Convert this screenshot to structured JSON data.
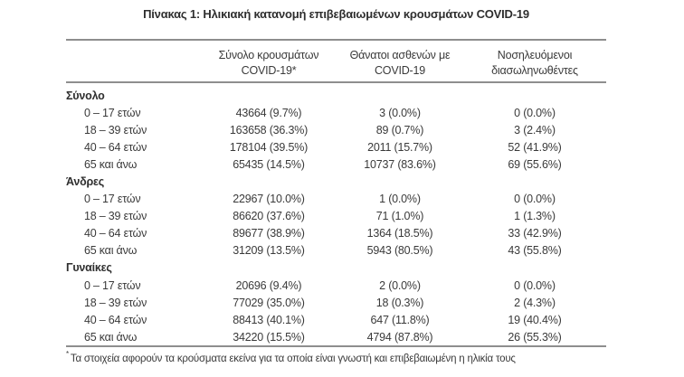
{
  "title": "Πίνακας 1: Ηλικιακή κατανομή επιβεβαιωμένων κρουσμάτων COVID-19",
  "colors": {
    "text": "#3a3a3a",
    "bold_text": "#2e2e2e",
    "border": "#8e8e8e",
    "background": "#ffffff"
  },
  "table": {
    "columns": [
      {
        "line1": "Σύνολο κρουσμάτων",
        "line2": "COVID-19*"
      },
      {
        "line1": "Θάνατοι ασθενών με",
        "line2": "COVID-19"
      },
      {
        "line1": "Νοσηλευόμενοι",
        "line2": "διασωληνωθέντες"
      }
    ],
    "sections": [
      {
        "label": "Σύνολο",
        "rows": [
          {
            "label": "0 – 17 ετών",
            "cases": "43664 (9.7%)",
            "deaths": "3 (0.0%)",
            "intubated": "0 (0.0%)"
          },
          {
            "label": "18 – 39 ετών",
            "cases": "163658 (36.3%)",
            "deaths": "89 (0.7%)",
            "intubated": "3 (2.4%)"
          },
          {
            "label": "40 – 64 ετών",
            "cases": "178104 (39.5%)",
            "deaths": "2011 (15.7%)",
            "intubated": "52 (41.9%)"
          },
          {
            "label": "65 και άνω",
            "cases": "65435 (14.5%)",
            "deaths": "10737 (83.6%)",
            "intubated": "69 (55.6%)"
          }
        ]
      },
      {
        "label": "Άνδρες",
        "rows": [
          {
            "label": "0 – 17 ετών",
            "cases": "22967 (10.0%)",
            "deaths": "1 (0.0%)",
            "intubated": "0 (0.0%)"
          },
          {
            "label": "18 – 39 ετών",
            "cases": "86620 (37.6%)",
            "deaths": "71 (1.0%)",
            "intubated": "1 (1.3%)"
          },
          {
            "label": "40 – 64 ετών",
            "cases": "89677 (38.9%)",
            "deaths": "1364 (18.5%)",
            "intubated": "33 (42.9%)"
          },
          {
            "label": "65 και άνω",
            "cases": "31209 (13.5%)",
            "deaths": "5943 (80.5%)",
            "intubated": "43 (55.8%)"
          }
        ]
      },
      {
        "label": "Γυναίκες",
        "rows": [
          {
            "label": "0 – 17 ετών",
            "cases": "20696 (9.4%)",
            "deaths": "2 (0.0%)",
            "intubated": "0 (0.0%)"
          },
          {
            "label": "18 – 39 ετών",
            "cases": "77029 (35.0%)",
            "deaths": "18 (0.3%)",
            "intubated": "2 (4.3%)"
          },
          {
            "label": "40 – 64 ετών",
            "cases": "88413 (40.1%)",
            "deaths": "647 (11.8%)",
            "intubated": "19 (40.4%)"
          },
          {
            "label": "65 και άνω",
            "cases": "34220 (15.5%)",
            "deaths": "4794 (87.8%)",
            "intubated": "26 (55.3%)"
          }
        ]
      }
    ],
    "footnote_marker": "*",
    "footnote": "Τα στοιχεία αφορούν τα κρούσματα εκείνα για τα οποία είναι γνωστή και επιβεβαιωμένη η ηλικία τους"
  }
}
